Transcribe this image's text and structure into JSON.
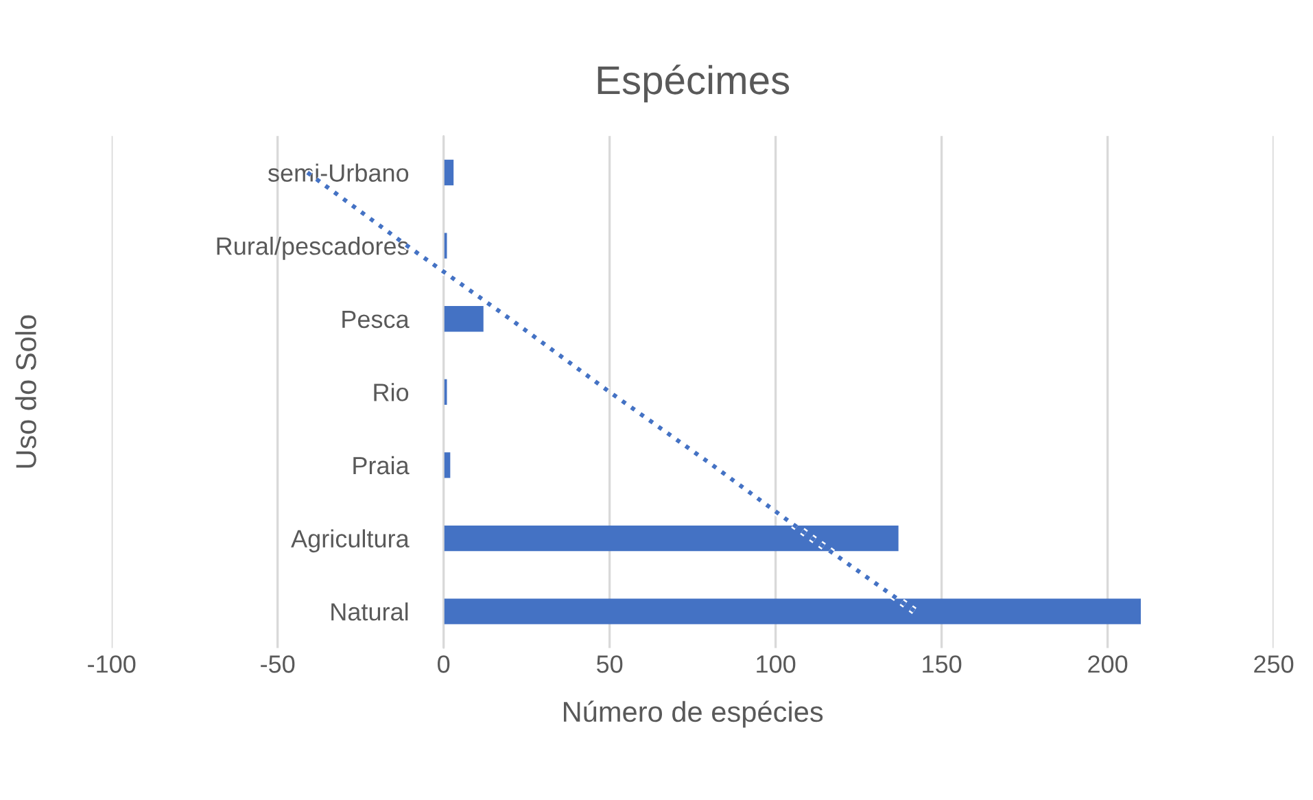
{
  "chart_data": {
    "type": "bar",
    "orientation": "horizontal",
    "title": "Espécimes",
    "xlabel": "Número de espécies",
    "ylabel": "Uso do Solo",
    "categories": [
      "semi-Urbano",
      "Rural/pescadores",
      "Pesca",
      "Rio",
      "Praia",
      "Agricultura",
      "Natural"
    ],
    "series": [
      {
        "color": "#4472c4",
        "values": [
          3,
          1,
          12,
          1,
          2,
          137,
          210
        ]
      },
      {
        "type": "line",
        "color": "#4472c4",
        "line_style": "dotted",
        "values": [
          -41,
          -11,
          20,
          50,
          81,
          111,
          142
        ]
      }
    ],
    "xlim": [
      -100,
      250
    ],
    "xticks": [
      -100,
      -50,
      0,
      50,
      100,
      150,
      200,
      250
    ],
    "grid": "x"
  }
}
